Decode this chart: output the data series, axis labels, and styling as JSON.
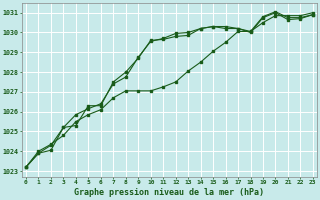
{
  "title": "Graphe pression niveau de la mer (hPa)",
  "bg_color": "#c8eaea",
  "grid_color": "#ffffff",
  "line_color": "#1a5c1a",
  "x_ticks": [
    0,
    1,
    2,
    3,
    4,
    5,
    6,
    7,
    8,
    9,
    10,
    11,
    12,
    13,
    14,
    15,
    16,
    17,
    18,
    19,
    20,
    21,
    22,
    23
  ],
  "ylim": [
    1022.7,
    1031.5
  ],
  "yticks": [
    1023,
    1024,
    1025,
    1026,
    1027,
    1028,
    1029,
    1030,
    1031
  ],
  "series1": [
    1023.2,
    1023.9,
    1024.3,
    1025.2,
    1025.3,
    1026.3,
    1026.3,
    1027.5,
    1028.0,
    1028.7,
    1029.6,
    1029.65,
    1029.8,
    1029.85,
    1030.2,
    1030.3,
    1030.3,
    1030.2,
    1030.05,
    1030.8,
    1031.05,
    1030.75,
    1030.75,
    1030.9
  ],
  "series2": [
    1023.2,
    1024.0,
    1024.35,
    1024.8,
    1025.5,
    1025.85,
    1026.1,
    1026.7,
    1027.05,
    1027.05,
    1027.05,
    1027.25,
    1027.5,
    1028.05,
    1028.5,
    1029.05,
    1029.5,
    1030.05,
    1030.05,
    1030.5,
    1030.85,
    1030.85,
    1030.85,
    1031.0
  ],
  "series3": [
    1023.2,
    1023.9,
    1024.05,
    1025.2,
    1025.85,
    1026.15,
    1026.4,
    1027.4,
    1027.75,
    1028.75,
    1029.55,
    1029.7,
    1029.95,
    1030.0,
    1030.2,
    1030.3,
    1030.2,
    1030.2,
    1030.0,
    1030.75,
    1031.0,
    1030.65,
    1030.7,
    1030.9
  ]
}
